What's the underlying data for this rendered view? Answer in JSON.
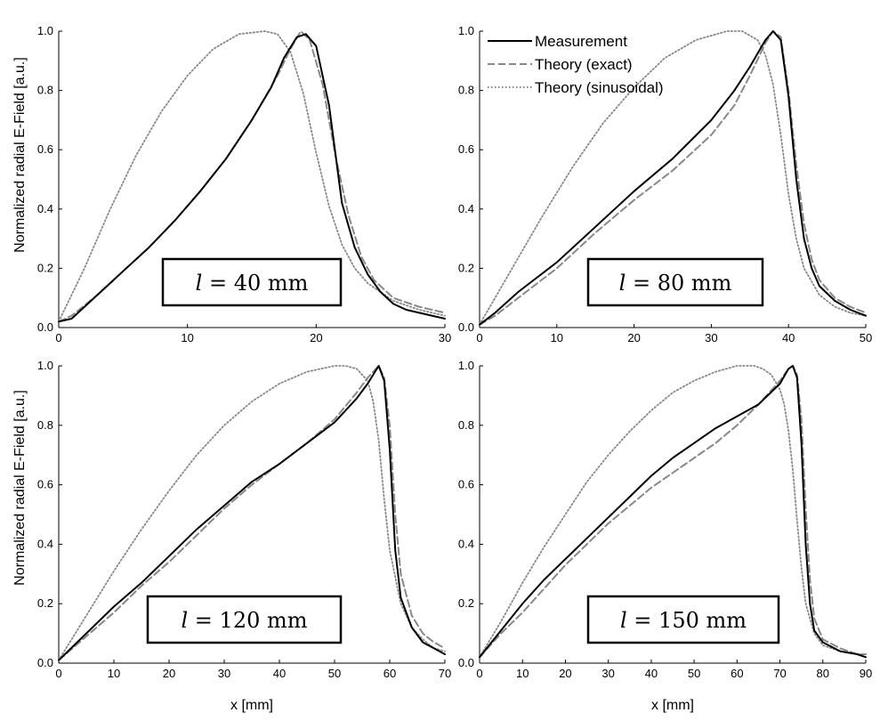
{
  "figure": {
    "ylabel": "Normalized radial E-Field [a.u.]",
    "xlabel": "x [mm]",
    "legend": {
      "placement": "top-right panel, upper-left",
      "items": [
        {
          "label": "Measurement",
          "style": "solid",
          "color": "#000000"
        },
        {
          "label": "Theory (exact)",
          "style": "dashed",
          "color": "#888888"
        },
        {
          "label": "Theory (sinusoidal)",
          "style": "dotted",
          "color": "#888888"
        }
      ]
    }
  },
  "chart_data": [
    {
      "type": "line",
      "annotation": {
        "var": "l",
        "eq": "=",
        "value": "40 mm"
      },
      "xlim": [
        0,
        30
      ],
      "ylim": [
        0,
        1.0
      ],
      "xticks": [
        0,
        10,
        20,
        30
      ],
      "yticks": [
        0.0,
        0.2,
        0.4,
        0.6,
        0.8,
        1.0
      ],
      "series": [
        {
          "name": "Measurement",
          "x": [
            0,
            1,
            3,
            5,
            7,
            9,
            11,
            13,
            15,
            16.5,
            17.5,
            18.5,
            19.2,
            20,
            21,
            22,
            23,
            24,
            25,
            26,
            27,
            28,
            30
          ],
          "y": [
            0.02,
            0.03,
            0.11,
            0.19,
            0.27,
            0.36,
            0.46,
            0.57,
            0.7,
            0.81,
            0.91,
            0.98,
            0.99,
            0.95,
            0.75,
            0.42,
            0.27,
            0.18,
            0.12,
            0.08,
            0.06,
            0.05,
            0.03
          ]
        },
        {
          "name": "Theory (exact)",
          "x": [
            0,
            1,
            3,
            5,
            7,
            9,
            11,
            13,
            15,
            17,
            18,
            18.8,
            19.5,
            20.5,
            21.5,
            22.5,
            23.5,
            24.5,
            26,
            28,
            30
          ],
          "y": [
            0.02,
            0.04,
            0.11,
            0.19,
            0.27,
            0.36,
            0.46,
            0.57,
            0.7,
            0.85,
            0.94,
            1.0,
            0.97,
            0.82,
            0.58,
            0.38,
            0.24,
            0.16,
            0.1,
            0.07,
            0.05
          ]
        },
        {
          "name": "Theory (sinusoidal)",
          "x": [
            0,
            2,
            4,
            6,
            8,
            10,
            12,
            14,
            16,
            17,
            18,
            19,
            20,
            21,
            22,
            23,
            24,
            26,
            28,
            30
          ],
          "y": [
            0.02,
            0.2,
            0.4,
            0.58,
            0.73,
            0.85,
            0.94,
            0.99,
            1.0,
            0.99,
            0.93,
            0.79,
            0.59,
            0.41,
            0.28,
            0.2,
            0.15,
            0.09,
            0.06,
            0.04
          ]
        }
      ]
    },
    {
      "type": "line",
      "annotation": {
        "var": "l",
        "eq": "=",
        "value": "80 mm"
      },
      "xlim": [
        0,
        50
      ],
      "ylim": [
        0,
        1.0
      ],
      "xticks": [
        0,
        10,
        20,
        30,
        40,
        50
      ],
      "yticks": [
        0.0,
        0.2,
        0.4,
        0.6,
        0.8,
        1.0
      ],
      "series": [
        {
          "name": "Measurement",
          "x": [
            0,
            2,
            5,
            10,
            15,
            20,
            25,
            30,
            33,
            35,
            37,
            38,
            39,
            40,
            41,
            42,
            43,
            44,
            46,
            48,
            50
          ],
          "y": [
            0.01,
            0.05,
            0.12,
            0.22,
            0.34,
            0.46,
            0.57,
            0.7,
            0.8,
            0.88,
            0.97,
            1.0,
            0.97,
            0.78,
            0.5,
            0.3,
            0.2,
            0.14,
            0.09,
            0.06,
            0.04
          ]
        },
        {
          "name": "Theory (exact)",
          "x": [
            0,
            2,
            5,
            10,
            15,
            20,
            25,
            30,
            33,
            35,
            37,
            38,
            39,
            40,
            41,
            42,
            43,
            44,
            46,
            48,
            50
          ],
          "y": [
            0.01,
            0.04,
            0.1,
            0.2,
            0.32,
            0.43,
            0.53,
            0.65,
            0.75,
            0.85,
            0.96,
            1.0,
            0.98,
            0.8,
            0.55,
            0.35,
            0.23,
            0.16,
            0.1,
            0.07,
            0.05
          ]
        },
        {
          "name": "Theory (sinusoidal)",
          "x": [
            0,
            4,
            8,
            12,
            16,
            20,
            24,
            28,
            32,
            34,
            36,
            37,
            38,
            39,
            40,
            41,
            42,
            44,
            46,
            48,
            50
          ],
          "y": [
            0.01,
            0.19,
            0.37,
            0.54,
            0.69,
            0.81,
            0.91,
            0.97,
            1.0,
            1.0,
            0.97,
            0.92,
            0.82,
            0.65,
            0.45,
            0.3,
            0.2,
            0.11,
            0.07,
            0.05,
            0.04
          ]
        }
      ]
    },
    {
      "type": "line",
      "annotation": {
        "var": "l",
        "eq": "=",
        "value": "120 mm"
      },
      "xlim": [
        0,
        70
      ],
      "ylim": [
        0,
        1.0
      ],
      "xticks": [
        0,
        10,
        20,
        30,
        40,
        50,
        60,
        70
      ],
      "yticks": [
        0.0,
        0.2,
        0.4,
        0.6,
        0.8,
        1.0
      ],
      "series": [
        {
          "name": "Measurement",
          "x": [
            0,
            5,
            10,
            15,
            20,
            25,
            30,
            35,
            40,
            45,
            50,
            54,
            56,
            58,
            59,
            60,
            61,
            62,
            64,
            66,
            68,
            70
          ],
          "y": [
            0.01,
            0.1,
            0.19,
            0.27,
            0.36,
            0.45,
            0.53,
            0.61,
            0.67,
            0.74,
            0.81,
            0.89,
            0.94,
            1.0,
            0.95,
            0.72,
            0.38,
            0.22,
            0.12,
            0.07,
            0.05,
            0.03
          ]
        },
        {
          "name": "Theory (exact)",
          "x": [
            0,
            5,
            10,
            15,
            20,
            25,
            30,
            35,
            40,
            45,
            50,
            54,
            56,
            58,
            59,
            60,
            61,
            62,
            64,
            66,
            68,
            70
          ],
          "y": [
            0.01,
            0.09,
            0.17,
            0.26,
            0.34,
            0.43,
            0.52,
            0.6,
            0.67,
            0.74,
            0.82,
            0.91,
            0.96,
            1.0,
            0.96,
            0.8,
            0.5,
            0.3,
            0.16,
            0.1,
            0.07,
            0.05
          ]
        },
        {
          "name": "Theory (sinusoidal)",
          "x": [
            0,
            5,
            10,
            15,
            20,
            25,
            30,
            35,
            40,
            45,
            50,
            52,
            54,
            56,
            57,
            58,
            59,
            60,
            62,
            64,
            66,
            68,
            70
          ],
          "y": [
            0.01,
            0.16,
            0.31,
            0.45,
            0.58,
            0.7,
            0.8,
            0.88,
            0.94,
            0.98,
            1.0,
            1.0,
            0.99,
            0.95,
            0.88,
            0.75,
            0.55,
            0.38,
            0.2,
            0.12,
            0.08,
            0.05,
            0.04
          ]
        }
      ]
    },
    {
      "type": "line",
      "annotation": {
        "var": "l",
        "eq": "=",
        "value": "150 mm"
      },
      "xlim": [
        0,
        90
      ],
      "ylim": [
        0,
        1.0
      ],
      "xticks": [
        0,
        10,
        20,
        30,
        40,
        50,
        60,
        70,
        80,
        90
      ],
      "yticks": [
        0.0,
        0.2,
        0.4,
        0.6,
        0.8,
        1.0
      ],
      "series": [
        {
          "name": "Measurement",
          "x": [
            0,
            5,
            10,
            15,
            20,
            25,
            30,
            35,
            40,
            45,
            50,
            55,
            60,
            65,
            70,
            72,
            73,
            74,
            75,
            76,
            77,
            78,
            80,
            84,
            88,
            90
          ],
          "y": [
            0.02,
            0.11,
            0.2,
            0.28,
            0.35,
            0.42,
            0.49,
            0.56,
            0.63,
            0.69,
            0.74,
            0.79,
            0.83,
            0.87,
            0.94,
            0.99,
            1.0,
            0.96,
            0.74,
            0.4,
            0.2,
            0.11,
            0.07,
            0.04,
            0.03,
            0.02
          ]
        },
        {
          "name": "Theory (exact)",
          "x": [
            0,
            5,
            10,
            15,
            20,
            25,
            30,
            35,
            40,
            45,
            50,
            55,
            60,
            65,
            70,
            72,
            73,
            74,
            75,
            76,
            77,
            78,
            80,
            84,
            88,
            90
          ],
          "y": [
            0.02,
            0.1,
            0.17,
            0.25,
            0.33,
            0.4,
            0.47,
            0.53,
            0.59,
            0.64,
            0.69,
            0.74,
            0.8,
            0.87,
            0.95,
            0.99,
            1.0,
            0.97,
            0.82,
            0.52,
            0.28,
            0.15,
            0.08,
            0.05,
            0.03,
            0.03
          ]
        },
        {
          "name": "Theory (sinusoidal)",
          "x": [
            0,
            5,
            10,
            15,
            20,
            25,
            30,
            35,
            40,
            45,
            50,
            55,
            60,
            64,
            66,
            68,
            70,
            71,
            72,
            73,
            74,
            75,
            76,
            78,
            80,
            84,
            88,
            90
          ],
          "y": [
            0.02,
            0.14,
            0.27,
            0.39,
            0.5,
            0.61,
            0.7,
            0.78,
            0.85,
            0.91,
            0.95,
            0.98,
            1.0,
            1.0,
            0.99,
            0.97,
            0.92,
            0.87,
            0.78,
            0.65,
            0.48,
            0.32,
            0.2,
            0.1,
            0.06,
            0.04,
            0.03,
            0.03
          ]
        }
      ]
    }
  ]
}
